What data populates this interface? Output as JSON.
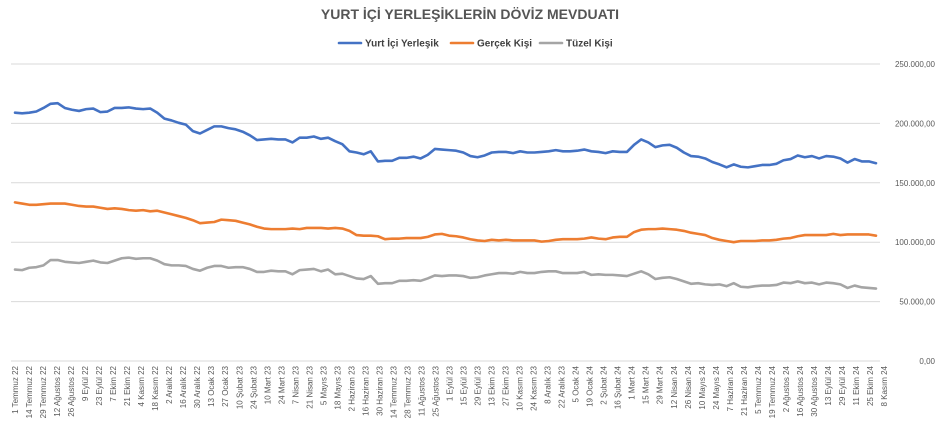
{
  "chart_data": {
    "type": "line",
    "title": "YURT İÇİ YERLEŞİKLERİN DÖVİZ MEVDUATI",
    "ylim": [
      0,
      250000
    ],
    "y_ticks": [
      "0,00",
      "50.000,00",
      "100.000,00",
      "150.000,00",
      "200.000,00",
      "250.000,00"
    ],
    "y_tick_values": [
      0,
      50000,
      100000,
      150000,
      200000,
      250000
    ],
    "x_tick_labels": [
      "1 Temmuz 22",
      "14 Temmuz 22",
      "29 Temmuz 22",
      "12 Ağustos 22",
      "26 Ağustos 22",
      "9 Eylül 22",
      "23 Eylül 22",
      "7 Ekim 22",
      "21 Ekim 22",
      "4 Kasım 22",
      "18 Kasım 22",
      "2 Aralık 22",
      "16 Aralık 22",
      "30 Aralık 22",
      "13 Ocak 23",
      "27 Ocak 23",
      "10 Şubat 23",
      "24 Şubat 23",
      "10 Mart 23",
      "24 Mart 23",
      "7 Nisan 23",
      "21 Nisan 23",
      "5 Mayıs 23",
      "18 Mayıs 23",
      "2 Haziran 23",
      "16 Haziran 23",
      "30 Haziran 23",
      "14 Temmuz 23",
      "28 Temmuz 23",
      "11 Ağustos 23",
      "25 Ağustos 23",
      "1 Eylül 23",
      "15 Eylül 23",
      "29 Eylül 23",
      "13 Ekim 23",
      "27 Ekim 23",
      "10 Kasım 23",
      "24 Kasım 23",
      "8 Aralık 23",
      "22 Aralık 23",
      "5 Ocak 24",
      "19 Ocak 24",
      "2 Şubat 24",
      "16 Şubat 24",
      "1 Mart 24",
      "15 Mart 24",
      "29 Mart 24",
      "12 Nisan 24",
      "26 Nisan 24",
      "10 Mayıs 24",
      "24 Mayıs 24",
      "7 Haziran 24",
      "21 Haziran 24",
      "5 Temmuz 24",
      "19 Temmuz 24",
      "2 Ağustos 24",
      "16 Ağustos 24",
      "30 Ağustos 24",
      "13 Eylül 24",
      "29 Eylül 24",
      "11 Ekim 24",
      "25 Ekim 24",
      "8 Kasım 24"
    ],
    "legend": {
      "placement": "top-center",
      "entries": [
        "Yurt İçi Yerleşik",
        "Gerçek Kişi",
        "Tüzel Kişi"
      ]
    },
    "series": [
      {
        "name": "Yurt İçi Yerleşik",
        "color": "#4472C4",
        "values": [
          209000,
          208500,
          209000,
          210000,
          213000,
          216500,
          217000,
          213000,
          211500,
          210500,
          212000,
          212500,
          209500,
          210000,
          213000,
          213000,
          213500,
          212500,
          212000,
          212500,
          209000,
          204000,
          202500,
          200500,
          199000,
          193500,
          191500,
          194500,
          197500,
          197500,
          196000,
          195000,
          193000,
          190000,
          186000,
          186500,
          187000,
          186500,
          186500,
          184000,
          188000,
          188000,
          189000,
          187000,
          188000,
          185000,
          182500,
          176500,
          175500,
          174000,
          176500,
          168000,
          168500,
          168500,
          171000,
          171000,
          172000,
          170500,
          173500,
          178500,
          178000,
          177500,
          177000,
          175500,
          172500,
          171500,
          173000,
          175500,
          176000,
          176000,
          175000,
          176500,
          175500,
          175500,
          176000,
          176500,
          177500,
          176500,
          176500,
          177000,
          178000,
          176500,
          176000,
          175000,
          176500,
          176000,
          176000,
          182000,
          186500,
          184000,
          180000,
          181500,
          182000,
          179500,
          175500,
          172500,
          172000,
          170500,
          167500,
          165500,
          163000,
          165500,
          163500,
          163000,
          164000,
          165000,
          165000,
          166000,
          169000,
          170000,
          173000,
          171500,
          172500,
          170500,
          172500,
          172000,
          170500,
          167000,
          170000,
          168000,
          168000,
          166500
        ]
      },
      {
        "name": "Gerçek Kişi",
        "color": "#ED7D31",
        "values": [
          133500,
          132500,
          131500,
          131500,
          132000,
          132500,
          132500,
          132500,
          131500,
          130500,
          130000,
          130000,
          129000,
          128000,
          128500,
          128000,
          127000,
          126500,
          127000,
          126000,
          126500,
          125000,
          123500,
          122000,
          120500,
          118500,
          116000,
          116500,
          117000,
          119000,
          118500,
          118000,
          116500,
          115000,
          113000,
          111500,
          111000,
          111000,
          111000,
          111500,
          111000,
          112000,
          112000,
          112000,
          111500,
          112000,
          111500,
          109500,
          106000,
          105500,
          105500,
          105000,
          102500,
          103000,
          103000,
          103500,
          103500,
          103500,
          104500,
          106500,
          107000,
          105500,
          105000,
          104000,
          102500,
          101500,
          101000,
          102000,
          101500,
          102000,
          101500,
          101500,
          101500,
          101500,
          100500,
          101000,
          102000,
          102500,
          102500,
          102500,
          103000,
          104000,
          103000,
          102500,
          104000,
          104500,
          104500,
          108500,
          110500,
          111000,
          111000,
          111500,
          111000,
          110500,
          109500,
          108000,
          107000,
          106000,
          103500,
          102000,
          101000,
          100000,
          101000,
          101000,
          101000,
          101500,
          101500,
          102000,
          103000,
          103500,
          105000,
          106000,
          106000,
          106000,
          106000,
          107000,
          106000,
          106500,
          106500,
          106500,
          106500,
          105500
        ]
      },
      {
        "name": "Tüzel Kişi",
        "color": "#A5A5A5",
        "values": [
          77000,
          76500,
          78500,
          79000,
          80500,
          85000,
          85000,
          83500,
          83000,
          82500,
          83500,
          84500,
          83000,
          82500,
          84500,
          86500,
          87000,
          86000,
          86500,
          86500,
          84500,
          81500,
          80500,
          80500,
          80000,
          77500,
          76000,
          78500,
          80000,
          80000,
          78500,
          79000,
          79000,
          77500,
          75000,
          75000,
          76000,
          75500,
          75500,
          73000,
          76500,
          77000,
          77500,
          75500,
          77000,
          73000,
          73500,
          71500,
          69500,
          69000,
          71500,
          65000,
          65500,
          65500,
          67500,
          67500,
          68000,
          67500,
          69500,
          72000,
          71500,
          72000,
          72000,
          71500,
          70000,
          70500,
          72000,
          73000,
          74000,
          74000,
          73500,
          75000,
          74000,
          74000,
          75000,
          75500,
          75500,
          74000,
          74000,
          74000,
          75000,
          72500,
          73000,
          72500,
          72500,
          72000,
          71500,
          73500,
          75500,
          73000,
          69000,
          70000,
          70500,
          69000,
          67000,
          65000,
          65500,
          64500,
          64000,
          64500,
          63000,
          65500,
          62500,
          62000,
          63000,
          63500,
          63500,
          64000,
          66000,
          65500,
          67000,
          65500,
          66000,
          64500,
          66000,
          65500,
          64500,
          61500,
          63500,
          62000,
          61500,
          61000
        ]
      }
    ]
  }
}
